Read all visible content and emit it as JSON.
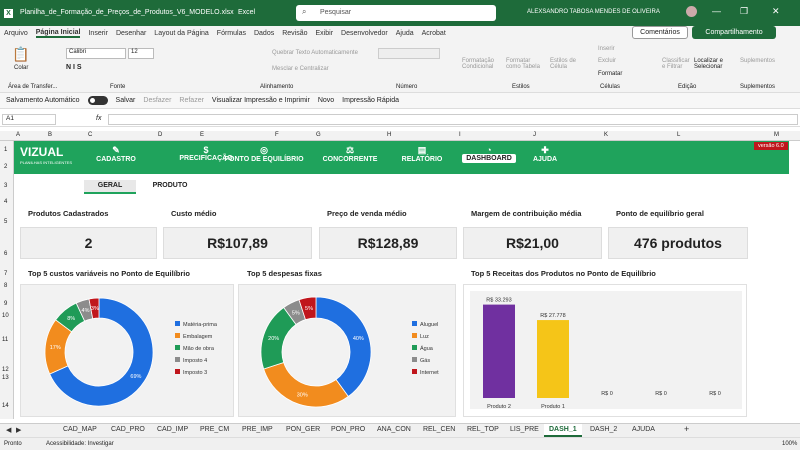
{
  "titlebar": {
    "filename": "Planilha_de_Formação_de_Preços_de_Produtos_V6_MODELO.xlsx",
    "app": "Excel",
    "search": "Pesquisar",
    "user": "ALEXSANDRO TABOSA MENDES DE OLIVEIRA"
  },
  "menu": [
    "Arquivo",
    "Página Inicial",
    "Inserir",
    "Desenhar",
    "Layout da Página",
    "Fórmulas",
    "Dados",
    "Revisão",
    "Exibir",
    "Desenvolvedor",
    "Ajuda",
    "Acrobat"
  ],
  "menu_right": {
    "comments": "Comentários",
    "share": "Compartilhamento"
  },
  "ribbon": {
    "paste": "Colar",
    "clipboard": "Área de Transfer...",
    "font_name": "Calibri",
    "font_size": "12",
    "font_group": "Fonte",
    "wrap": "Quebrar Texto Automaticamente",
    "merge": "Mesclar e Centralizar",
    "align_group": "Alinhamento",
    "number_group": "Número",
    "cond_format": "Formatação Condicional",
    "format_table": "Formatar como Tabela",
    "cell_styles": "Estilos de Célula",
    "styles_group": "Estilos",
    "insert": "Inserir",
    "delete": "Excluir",
    "format": "Formatar",
    "cells_group": "Células",
    "sort": "Classificar e Filtrar",
    "find": "Localizar e Selecionar",
    "edit_group": "Edição",
    "addins": "Suplementos",
    "addins_group": "Suplementos"
  },
  "qat": {
    "autosave": "Salvamento Automático",
    "save": "Salvar",
    "undo": "Desfazer",
    "redo": "Refazer",
    "preview": "Visualizar Impressão e Imprimir",
    "new": "Novo",
    "quickprint": "Impressão Rápida"
  },
  "formula": {
    "cell": "A1",
    "fx": "fx"
  },
  "columns": [
    "A",
    "B",
    "C",
    "D",
    "E",
    "F",
    "G",
    "H",
    "I",
    "J",
    "K",
    "L",
    "M"
  ],
  "rows": [
    "1",
    "2",
    "3",
    "4",
    "5",
    "6",
    "7",
    "8",
    "9",
    "10",
    "11",
    "12",
    "13",
    "14"
  ],
  "nav": {
    "logo": "VIZUAL",
    "logo_sub": "PLANILHAS INTELIGENTES",
    "items": [
      "CADASTRO",
      "PRECIFICAÇÃO",
      "PONTO DE EQUILÍBRIO",
      "CONCORRENTE",
      "RELATÓRIO",
      "DASHBOARD",
      "AJUDA"
    ],
    "version": "versão 6.0"
  },
  "subtabs": {
    "general": "GERAL",
    "product": "PRODUTO"
  },
  "kpis": [
    {
      "label": "Produtos Cadastrados",
      "value": "2"
    },
    {
      "label": "Custo médio",
      "value": "R$107,89"
    },
    {
      "label": "Preço de venda médio",
      "value": "R$128,89"
    },
    {
      "label": "Margem de contribuição média",
      "value": "R$21,00"
    },
    {
      "label": "Ponto de equilíbrio geral",
      "value": "476 produtos"
    }
  ],
  "chart_titles": [
    "Top 5 custos variáveis no Ponto de Equilíbrio",
    "Top 5 despesas fixas",
    "Top 5 Receitas dos Produtos no Ponto de Equilíbrio"
  ],
  "colors": {
    "blue": "#1f6fe0",
    "orange": "#f28c1e",
    "green": "#1f9b57",
    "gray": "#8c8c8c",
    "red": "#c0161c",
    "purple": "#7030a0",
    "yellow": "#f5c518"
  },
  "chart_data": [
    {
      "type": "pie",
      "title": "Top 5 custos variáveis no Ponto de Equilíbrio",
      "labels": [
        "Matéria-prima",
        "Embalagem",
        "Mão de obra",
        "Imposto 4",
        "Imposto 3"
      ],
      "values": [
        69,
        17,
        8,
        4,
        3
      ],
      "data_labels": [
        "69%",
        "17%",
        "8%",
        "4%",
        "3%"
      ]
    },
    {
      "type": "pie",
      "title": "Top 5 despesas fixas",
      "labels": [
        "Aluguel",
        "Luz",
        "Água",
        "Gás",
        "Internet"
      ],
      "values": [
        40,
        30,
        20,
        5,
        5
      ],
      "data_labels": [
        "40%",
        "30%",
        "20%",
        "5%",
        "5%"
      ]
    },
    {
      "type": "bar",
      "title": "Top 5 Receitas dos Produtos no Ponto de Equilíbrio",
      "categories": [
        "Produto 2",
        "Produto 1",
        "",
        "",
        ""
      ],
      "values": [
        33293,
        27778,
        0,
        0,
        0
      ],
      "data_labels": [
        "R$ 33.293",
        "R$ 27.778",
        "R$ 0",
        "R$ 0",
        "R$ 0"
      ]
    }
  ],
  "sheets": [
    "CAD_MAP",
    "CAD_PRO",
    "CAD_IMP",
    "PRE_CM",
    "PRE_IMP",
    "PON_GER",
    "PON_PRO",
    "ANA_CON",
    "REL_CEN",
    "REL_TOP",
    "LIS_PRE",
    "DASH_1",
    "DASH_2",
    "AJUDA"
  ],
  "active_sheet": "DASH_1",
  "status": {
    "ready": "Pronto",
    "accessibility": "Acessibilidade: Investigar",
    "zoom": "100%"
  }
}
